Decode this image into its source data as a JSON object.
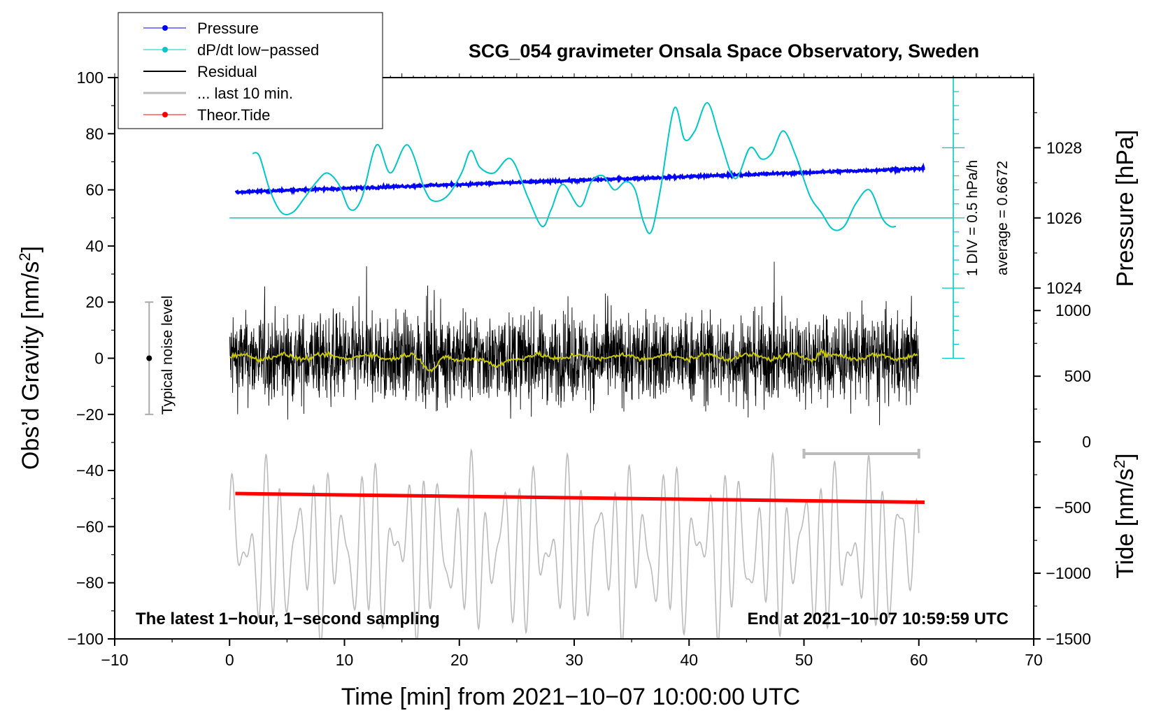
{
  "chart_data": {
    "type": "line",
    "title": "SCG_054 gravimeter Onsala Space Observatory, Sweden",
    "xlabel": "Time [min] from 2021−10−07 10:00:00 UTC",
    "ylabel_main": "Obs’d Gravity [nm/s",
    "ylabel_main_sup": "2",
    "ylabel_main_end": "]",
    "ylabel_pressure": "Pressure [hPa]",
    "ylabel_tide": "Tide [nm/s",
    "ylabel_tide_sup": "2",
    "ylabel_tide_end": "]",
    "xlim": [
      -10,
      70
    ],
    "ylim": [
      -100,
      100
    ],
    "x_ticks": [
      -10,
      0,
      10,
      20,
      30,
      40,
      50,
      60,
      70
    ],
    "x_tick_labels": [
      "−10",
      "0",
      "10",
      "20",
      "30",
      "40",
      "50",
      "60",
      "70"
    ],
    "y_ticks": [
      -100,
      -80,
      -60,
      -40,
      -20,
      0,
      20,
      40,
      60,
      80,
      100
    ],
    "y_tick_labels": [
      "−100",
      "−80",
      "−60",
      "−40",
      "−20",
      "0",
      "20",
      "40",
      "60",
      "80",
      "100"
    ],
    "pressure_axis": {
      "ticks": [
        1024,
        1026,
        1028
      ],
      "tick_labels": [
        "1024",
        "1026",
        "1028"
      ],
      "mapping": {
        "hpa": [
          1024,
          1028
        ],
        "gravity": [
          25,
          75
        ]
      }
    },
    "tide_axis": {
      "ticks": [
        -1500,
        -1000,
        -500,
        0,
        500,
        1000
      ],
      "tick_labels": [
        "−1500",
        "−1000",
        "−500",
        "0",
        "500",
        "1000"
      ],
      "mapping": {
        "tide": [
          -1500,
          1000
        ],
        "gravity": [
          -100,
          17
        ]
      }
    },
    "series": [
      {
        "name": "Pressure",
        "color": "#0000ff",
        "x_range": [
          0.5,
          60.5
        ],
        "y_start": 59.2,
        "y_end": 67.6,
        "noise": 0.4
      },
      {
        "name": "dP/dt low−passed",
        "color": "#00c8c8",
        "baseline": 50,
        "x": [
          2.0,
          2.6,
          3.5,
          4.5,
          5.5,
          6.5,
          7.6,
          8.5,
          9.5,
          10.5,
          11.5,
          12.8,
          14.0,
          15.5,
          17.0,
          17.8,
          19.0,
          20.2,
          21.0,
          21.8,
          23.0,
          24.5,
          26.0,
          27.2,
          28.0,
          29.0,
          30.5,
          31.5,
          32.5,
          33.5,
          34.5,
          35.3,
          36.0,
          36.7,
          37.5,
          38.7,
          39.6,
          40.5,
          41.6,
          42.7,
          44.0,
          45.3,
          46.3,
          47.2,
          48.2,
          49.3,
          50.5,
          51.5,
          52.5,
          53.5,
          54.5,
          55.7,
          56.8,
          57.5,
          58.0
        ],
        "y": [
          73,
          72,
          60,
          52,
          52,
          57,
          63,
          66,
          62,
          53,
          57,
          76,
          66,
          76,
          60,
          56,
          58,
          66,
          74,
          68,
          66,
          71,
          57,
          47,
          53,
          62,
          54,
          63,
          65,
          60,
          63,
          60,
          49,
          45,
          60,
          89,
          78,
          81,
          91,
          78,
          64,
          75,
          71,
          73,
          81,
          72,
          58,
          52,
          46,
          47,
          55,
          60,
          50,
          47,
          47
        ]
      },
      {
        "name": "Residual",
        "color": "#000000",
        "x_range": [
          0,
          60
        ],
        "amplitude": 24
      },
      {
        "name": "... last 10 min.",
        "color": "#bbbbbb",
        "x_range": [
          0,
          60
        ],
        "center": -68,
        "amplitude": 27
      },
      {
        "name": "Theor.Tide",
        "color": "#ff0000",
        "x_range": [
          0.5,
          60.5
        ],
        "y_start": -48.2,
        "y_end": -51.3
      },
      {
        "name": "smoothed residual",
        "color": "#c8c800",
        "x_range": [
          0,
          60
        ],
        "y_mean": 0.5
      }
    ],
    "noise_level": {
      "label": "Typical noise level",
      "x": -7,
      "center": 0,
      "low": -20,
      "high": 20
    },
    "pressure_scale": {
      "label_div": "1 DIV = 0.5 hPa/h",
      "label_avg": "average = 0.6672",
      "x": 63,
      "y_low": 0,
      "y_high": 100
    },
    "last10_marker": {
      "x_start": 50,
      "x_end": 60,
      "y": -34
    },
    "notes": {
      "left": "The latest 1−hour, 1−second sampling",
      "right": "End at 2021−10−07 10:59:59 UTC"
    },
    "legend": [
      {
        "label": "Pressure",
        "color": "#0000ff",
        "marker": true,
        "lw": 1
      },
      {
        "label": "dP/dt low−passed",
        "color": "#00c8c8",
        "marker": true,
        "lw": 1
      },
      {
        "label": "Residual",
        "color": "#000000",
        "marker": false,
        "lw": 2
      },
      {
        "label": "... last 10 min.",
        "color": "#bbbbbb",
        "marker": false,
        "lw": 3
      },
      {
        "label": "Theor.Tide",
        "color": "#ff0000",
        "marker": true,
        "lw": 1
      }
    ]
  }
}
